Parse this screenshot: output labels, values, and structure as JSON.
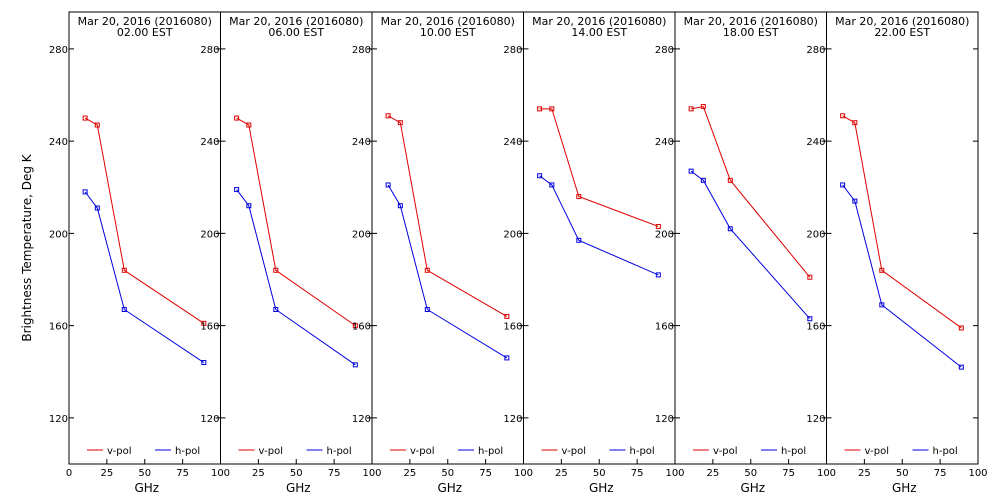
{
  "ylabel": "Brightness Temperature, Deg K",
  "xlabel": "GHz",
  "x_tick_labels": [
    "0",
    "25",
    "50",
    "75",
    "100"
  ],
  "y_tick_labels": [
    "120",
    "160",
    "200",
    "240",
    "280"
  ],
  "legend": {
    "vpol": "v-pol",
    "hpol": "h-pol"
  },
  "colors": {
    "vpol": "#e00000",
    "hpol": "#0000e0"
  },
  "chart_data": [
    {
      "type": "line",
      "title": "Mar 20, 2016 (2016080)",
      "subtitle": "02.00 EST",
      "xlabel": "GHz",
      "ylabel": "Brightness Temperature, Deg K",
      "xlim": [
        0,
        100
      ],
      "ylim": [
        100,
        296
      ],
      "x": [
        10.65,
        18.7,
        36.5,
        89.0
      ],
      "series": [
        {
          "name": "v-pol",
          "values": [
            250,
            247,
            184,
            161
          ]
        },
        {
          "name": "h-pol",
          "values": [
            218,
            211,
            167,
            144
          ]
        }
      ]
    },
    {
      "type": "line",
      "title": "Mar 20, 2016 (2016080)",
      "subtitle": "06.00 EST",
      "xlabel": "GHz",
      "ylabel": "",
      "xlim": [
        0,
        100
      ],
      "ylim": [
        100,
        296
      ],
      "x": [
        10.65,
        18.7,
        36.5,
        89.0
      ],
      "series": [
        {
          "name": "v-pol",
          "values": [
            250,
            247,
            184,
            160
          ]
        },
        {
          "name": "h-pol",
          "values": [
            219,
            212,
            167,
            143
          ]
        }
      ]
    },
    {
      "type": "line",
      "title": "Mar 20, 2016 (2016080)",
      "subtitle": "10.00 EST",
      "xlabel": "GHz",
      "ylabel": "",
      "xlim": [
        0,
        100
      ],
      "ylim": [
        100,
        296
      ],
      "x": [
        10.65,
        18.7,
        36.5,
        89.0
      ],
      "series": [
        {
          "name": "v-pol",
          "values": [
            251,
            248,
            184,
            164
          ]
        },
        {
          "name": "h-pol",
          "values": [
            221,
            212,
            167,
            146
          ]
        }
      ]
    },
    {
      "type": "line",
      "title": "Mar 20, 2016 (2016080)",
      "subtitle": "14.00 EST",
      "xlabel": "GHz",
      "ylabel": "",
      "xlim": [
        0,
        100
      ],
      "ylim": [
        100,
        296
      ],
      "x": [
        10.65,
        18.7,
        36.5,
        89.0
      ],
      "series": [
        {
          "name": "v-pol",
          "values": [
            254,
            254,
            216,
            203
          ]
        },
        {
          "name": "h-pol",
          "values": [
            225,
            221,
            197,
            182
          ]
        }
      ]
    },
    {
      "type": "line",
      "title": "Mar 20, 2016 (2016080)",
      "subtitle": "18.00 EST",
      "xlabel": "GHz",
      "ylabel": "",
      "xlim": [
        0,
        100
      ],
      "ylim": [
        100,
        296
      ],
      "x": [
        10.65,
        18.7,
        36.5,
        89.0
      ],
      "series": [
        {
          "name": "v-pol",
          "values": [
            254,
            255,
            223,
            181
          ]
        },
        {
          "name": "h-pol",
          "values": [
            227,
            223,
            202,
            163
          ]
        }
      ]
    },
    {
      "type": "line",
      "title": "Mar 20, 2016 (2016080)",
      "subtitle": "22.00 EST",
      "xlabel": "GHz",
      "ylabel": "",
      "xlim": [
        0,
        100
      ],
      "ylim": [
        100,
        296
      ],
      "x": [
        10.65,
        18.7,
        36.5,
        89.0
      ],
      "series": [
        {
          "name": "v-pol",
          "values": [
            251,
            248,
            184,
            159
          ]
        },
        {
          "name": "h-pol",
          "values": [
            221,
            214,
            169,
            142
          ]
        }
      ]
    }
  ]
}
